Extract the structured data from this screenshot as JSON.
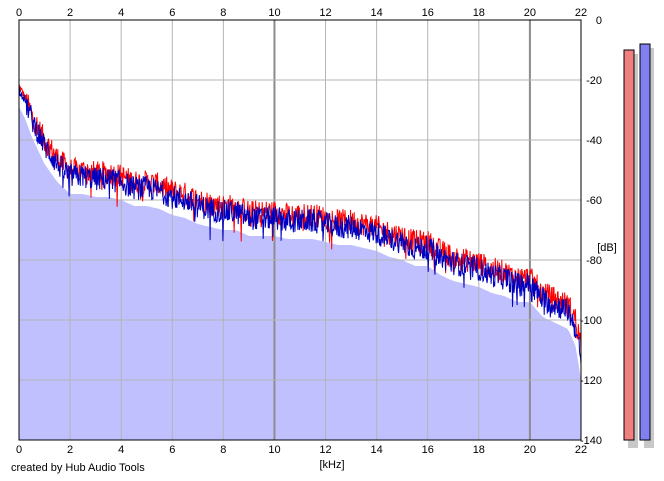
{
  "credit": "created by Hub Audio Tools",
  "chart_data": {
    "type": "area",
    "title": "",
    "xlabel": "[kHz]",
    "ylabel": "[dB]",
    "xlim": [
      0,
      22
    ],
    "ylim": [
      -140,
      0
    ],
    "x_ticks": [
      0,
      2,
      4,
      6,
      8,
      10,
      12,
      14,
      16,
      18,
      20,
      22
    ],
    "y_ticks": [
      0,
      -20,
      -40,
      -60,
      -80,
      -100,
      -120,
      -140
    ],
    "grid": true,
    "colors": {
      "fill": "#c0c0ff",
      "left": "#ff0000",
      "right": "#0000c0",
      "grid_minor": "#b4b4b4",
      "grid_major": "#8c8c8c",
      "meter_left": "#f08080",
      "meter_right": "#8080f0"
    },
    "series": [
      {
        "channel": "left",
        "x": [
          0,
          0.25,
          0.5,
          1,
          1.5,
          2,
          2.5,
          3,
          3.5,
          4,
          4.5,
          5,
          5.5,
          6,
          6.5,
          7,
          7.5,
          8,
          8.5,
          9,
          9.5,
          10,
          10.5,
          11,
          11.5,
          12,
          12.5,
          13,
          13.5,
          14,
          14.5,
          15,
          15.5,
          16,
          16.5,
          17,
          17.5,
          18,
          18.5,
          19,
          19.5,
          20,
          20.5,
          21,
          21.5,
          21.8,
          22
        ],
        "values": [
          -22,
          -26,
          -32,
          -40,
          -46,
          -50,
          -50,
          -51,
          -51,
          -52,
          -54,
          -54,
          -55,
          -57,
          -58,
          -60,
          -61,
          -62,
          -62,
          -64,
          -64,
          -64,
          -65,
          -65,
          -65,
          -66,
          -67,
          -67,
          -68,
          -69,
          -71,
          -72,
          -74,
          -74,
          -77,
          -79,
          -80,
          -81,
          -83,
          -84,
          -86,
          -86,
          -91,
          -93,
          -95,
          -100,
          -108
        ]
      },
      {
        "channel": "right",
        "x": [
          0,
          0.25,
          0.5,
          1,
          1.5,
          2,
          2.5,
          3,
          3.5,
          4,
          4.5,
          5,
          5.5,
          6,
          6.5,
          7,
          7.5,
          8,
          8.5,
          9,
          9.5,
          10,
          10.5,
          11,
          11.5,
          12,
          12.5,
          13,
          13.5,
          14,
          14.5,
          15,
          15.5,
          16,
          16.5,
          17,
          17.5,
          18,
          18.5,
          19,
          19.5,
          20,
          20.5,
          21,
          21.5,
          21.8,
          22
        ],
        "values": [
          -23,
          -27,
          -33,
          -42,
          -48,
          -52,
          -52,
          -53,
          -53,
          -54,
          -56,
          -56,
          -57,
          -59,
          -60,
          -62,
          -63,
          -64,
          -64,
          -66,
          -66,
          -66,
          -67,
          -67,
          -67,
          -68,
          -69,
          -69,
          -70,
          -71,
          -73,
          -74,
          -76,
          -76,
          -79,
          -81,
          -82,
          -83,
          -85,
          -86,
          -88,
          -88,
          -93,
          -95,
          -97,
          -103,
          -114
        ]
      }
    ],
    "meters": [
      {
        "channel": "left",
        "level_db": -10
      },
      {
        "channel": "right",
        "level_db": -8
      }
    ]
  }
}
